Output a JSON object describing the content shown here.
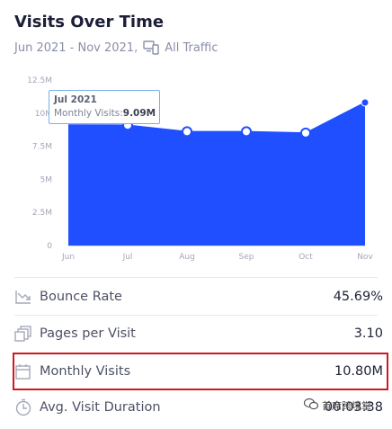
{
  "header": {
    "title": "Visits Over Time",
    "date_range": "Jun 2021 - Nov 2021,",
    "traffic": "All Traffic"
  },
  "chart_data": {
    "type": "area",
    "title": "",
    "xlabel": "",
    "ylabel": "",
    "categories": [
      "Jun",
      "Jul",
      "Aug",
      "Sep",
      "Oct",
      "Nov"
    ],
    "series": [
      {
        "values": [
          9.1,
          9.09,
          8.6,
          8.6,
          8.5,
          10.8
        ]
      }
    ],
    "ylim": [
      0,
      12.5
    ],
    "y_ticks": [
      "0",
      "2.5M",
      "5M",
      "7.5M",
      "10M",
      "12.5M"
    ],
    "color": "#1f4fff",
    "grid": false,
    "tooltip": {
      "title": "Jul 2021",
      "label": "Monthly Visits:",
      "value": "9.09M"
    }
  },
  "metrics": [
    {
      "icon": "trend-down-icon",
      "label": "Bounce Rate",
      "value": "45.69%"
    },
    {
      "icon": "pages-icon",
      "label": "Pages per Visit",
      "value": "3.10"
    },
    {
      "icon": "calendar-icon",
      "label": "Monthly Visits",
      "value": "10.80M"
    },
    {
      "icon": "clock-icon",
      "label": "Avg. Visit Duration",
      "value": "00:03:38"
    }
  ],
  "colors": {
    "accent": "#1f4fff",
    "highlight_border": "#cc1a22"
  },
  "watermark": {
    "text": "首席跨境掌"
  }
}
